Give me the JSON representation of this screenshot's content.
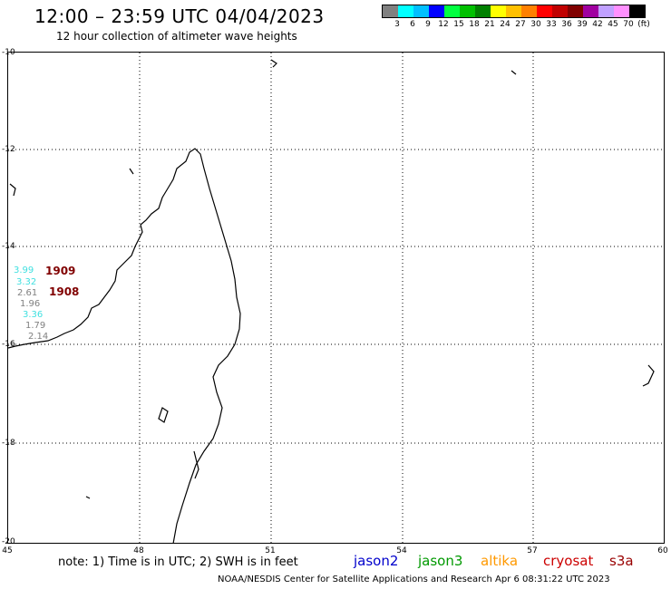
{
  "title": "12:00 – 23:59 UTC 04/04/2023",
  "subtitle": "12 hour collection of altimeter wave heights",
  "scale": {
    "unit": "(ft)",
    "colors": [
      "#808080",
      "#00ffff",
      "#00bfff",
      "#0000ff",
      "#00ff40",
      "#00c000",
      "#008000",
      "#ffff00",
      "#ffc000",
      "#ff8000",
      "#ff0000",
      "#c00000",
      "#800000",
      "#a000a0",
      "#c0a0ff",
      "#ff90ff",
      "#000000"
    ],
    "labels": [
      "3",
      "6",
      "9",
      "12",
      "15",
      "18",
      "21",
      "24",
      "27",
      "30",
      "33",
      "36",
      "39",
      "42",
      "45",
      "70"
    ]
  },
  "axes": {
    "lat_labels": [
      "-10",
      "-12",
      "-14",
      "-16",
      "-18",
      "-20"
    ],
    "lon_labels": [
      "45",
      "48",
      "51",
      "54",
      "57",
      "60"
    ]
  },
  "observations": [
    {
      "text": "3.99",
      "color": "#40e0e0"
    },
    {
      "text": "3.32",
      "color": "#40e0e0"
    },
    {
      "text": "2.61",
      "color": "#808080"
    },
    {
      "text": "1.96",
      "color": "#808080"
    },
    {
      "text": "3.36",
      "color": "#40e0e0"
    },
    {
      "text": "1.79",
      "color": "#808080"
    },
    {
      "text": "2.14",
      "color": "#808080"
    }
  ],
  "time_labels": [
    {
      "text": "1909",
      "color": "#800000"
    },
    {
      "text": "1908",
      "color": "#800000"
    }
  ],
  "note": "note: 1) Time is in UTC; 2) SWH is in feet",
  "satellites": [
    {
      "name": "jason2",
      "color": "#0000cc"
    },
    {
      "name": "jason3",
      "color": "#009900"
    },
    {
      "name": "altika",
      "color": "#ff9900"
    },
    {
      "name": "cryosat",
      "color": "#cc0000"
    },
    {
      "name": "s3a",
      "color": "#990000"
    }
  ],
  "credit": "NOAA/NESDIS Center for Satellite Applications and Research   Apr  6 08:31:22 UTC 2023"
}
